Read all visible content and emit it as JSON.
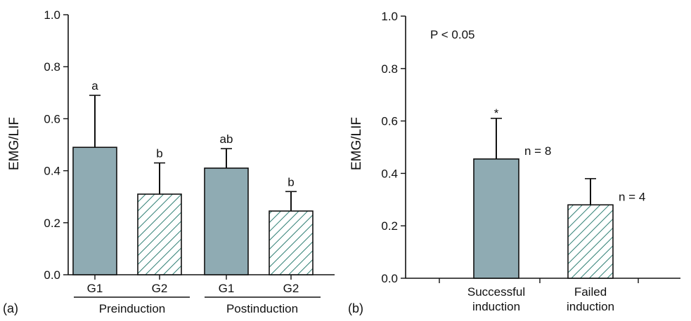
{
  "chart_data": [
    {
      "panel_label": "(a)",
      "type": "bar",
      "ylabel": "EMG/LIF",
      "ylim": [
        0.0,
        1.0
      ],
      "yticks": [
        "0.0",
        "0.2",
        "0.4",
        "0.6",
        "0.8",
        "1.0"
      ],
      "categories": [
        "G1",
        "G2",
        "G1",
        "G2"
      ],
      "groups": [
        "Preinduction",
        "Postinduction"
      ],
      "values": [
        0.49,
        0.31,
        0.41,
        0.245
      ],
      "errors": [
        0.2,
        0.12,
        0.075,
        0.075
      ],
      "annotations": [
        "a",
        "b",
        "ab",
        "b"
      ],
      "fills": [
        "solid",
        "hatched",
        "solid",
        "hatched"
      ],
      "colors": {
        "solid": "#8fabb3",
        "hatch": "#2f7f74"
      }
    },
    {
      "panel_label": "(b)",
      "type": "bar",
      "ylabel": "EMG/LIF",
      "ylim": [
        0.0,
        1.0
      ],
      "yticks": [
        "0.0",
        "0.2",
        "0.4",
        "0.6",
        "0.8",
        "1.0"
      ],
      "categories": [
        "Successful\ninduction",
        "Failed\ninduction"
      ],
      "values": [
        0.455,
        0.28
      ],
      "errors": [
        0.155,
        0.1
      ],
      "n_labels": [
        "n = 8",
        "n = 4"
      ],
      "star": [
        "*",
        ""
      ],
      "p_text": "P < 0.05",
      "fills": [
        "solid",
        "hatched"
      ],
      "colors": {
        "solid": "#8fabb3",
        "hatch": "#2f7f74"
      }
    }
  ]
}
